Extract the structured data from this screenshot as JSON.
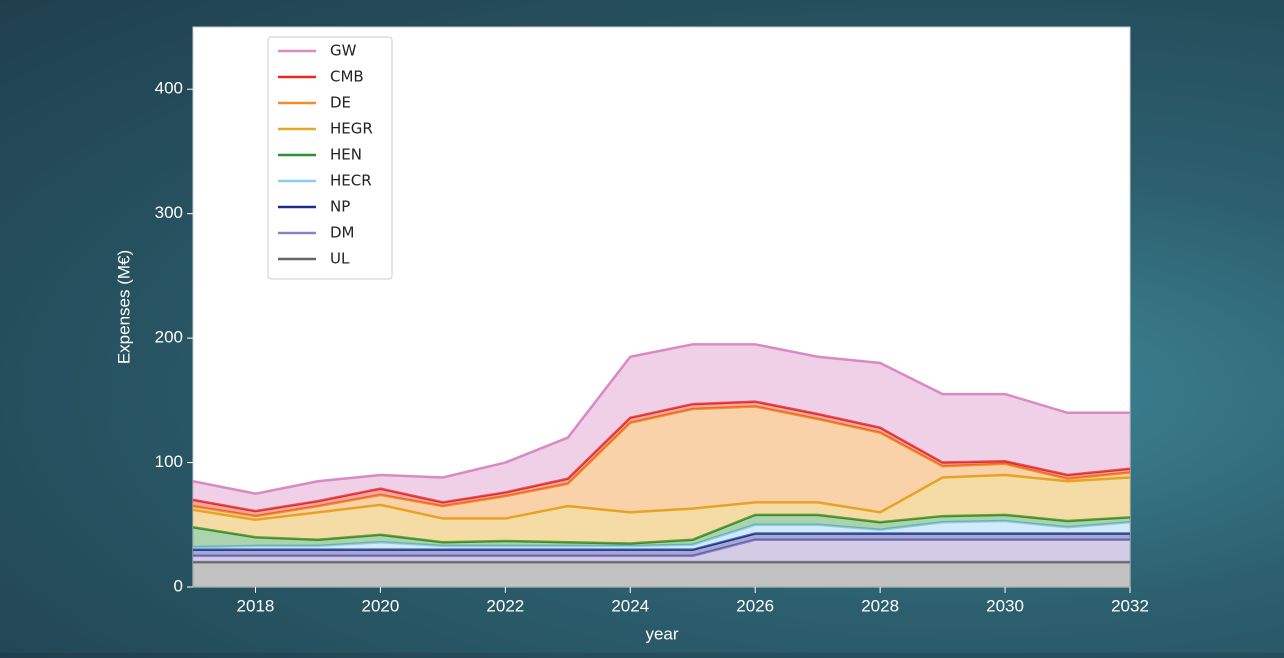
{
  "chart_data": {
    "type": "area",
    "stacked": true,
    "xlabel": "year",
    "ylabel": "Expenses (M€)",
    "x": [
      2017,
      2018,
      2019,
      2020,
      2021,
      2022,
      2023,
      2024,
      2025,
      2026,
      2027,
      2028,
      2029,
      2030,
      2031,
      2032
    ],
    "series": [
      {
        "name": "GW",
        "color": "#d98ac4",
        "values": [
          15,
          14,
          16,
          11,
          20,
          24,
          33,
          49,
          48,
          46,
          46,
          52,
          55,
          54,
          50,
          45
        ]
      },
      {
        "name": "CMB",
        "color": "#e8291c",
        "values": [
          5,
          4,
          4,
          5,
          3,
          3,
          4,
          4,
          4,
          4,
          4,
          4,
          3,
          2,
          3,
          3
        ]
      },
      {
        "name": "DE",
        "color": "#f28e2b",
        "values": [
          3,
          3,
          5,
          8,
          10,
          18,
          18,
          72,
          80,
          77,
          67,
          64,
          9,
          9,
          2,
          4
        ]
      },
      {
        "name": "HEGR",
        "color": "#e5a823",
        "values": [
          14,
          14,
          22,
          24,
          19,
          18,
          29,
          25,
          25,
          10,
          10,
          8,
          31,
          32,
          32,
          32
        ]
      },
      {
        "name": "HEN",
        "color": "#2a9134",
        "values": [
          16,
          7,
          5,
          6,
          3,
          4,
          3,
          2,
          4,
          8,
          8,
          6,
          5,
          5,
          5,
          4
        ]
      },
      {
        "name": "HECR",
        "color": "#8fcbf0",
        "values": [
          2,
          3,
          3,
          6,
          3,
          3,
          3,
          3,
          4,
          7,
          7,
          3,
          9,
          10,
          5,
          9
        ]
      },
      {
        "name": "NP",
        "color": "#1f2a8a",
        "values": [
          5,
          5,
          5,
          5,
          5,
          5,
          5,
          5,
          5,
          5,
          5,
          5,
          5,
          5,
          5,
          5
        ]
      },
      {
        "name": "DM",
        "color": "#8f7fc4",
        "values": [
          5,
          5,
          5,
          5,
          5,
          5,
          5,
          5,
          5,
          18,
          18,
          18,
          18,
          18,
          18,
          18
        ]
      },
      {
        "name": "UL",
        "color": "#666666",
        "values": [
          20,
          20,
          20,
          20,
          20,
          20,
          20,
          20,
          20,
          20,
          20,
          20,
          20,
          20,
          20,
          20
        ]
      }
    ],
    "xlim": [
      2017,
      2032
    ],
    "ylim": [
      0,
      450
    ],
    "xticks": [
      2018,
      2020,
      2022,
      2024,
      2026,
      2028,
      2030,
      2032
    ],
    "yticks": [
      0,
      100,
      200,
      300,
      400
    ],
    "legend": "upper left"
  }
}
